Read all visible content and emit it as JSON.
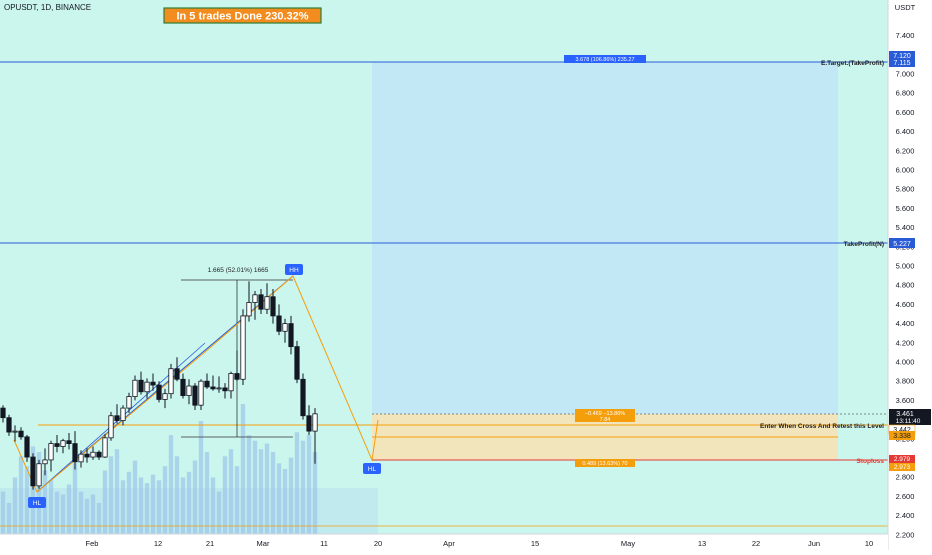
{
  "header": {
    "symbol": "OPUSDT, 1D, BINANCE",
    "banner": "In 5 trades Done 230.32%"
  },
  "price_axis": {
    "currency": "USDT",
    "ticks": [
      "7.400",
      "7.200",
      "7.000",
      "6.800",
      "6.600",
      "6.400",
      "6.200",
      "6.000",
      "5.800",
      "5.600",
      "5.400",
      "5.200",
      "5.000",
      "4.800",
      "4.600",
      "4.400",
      "4.200",
      "4.000",
      "3.800",
      "3.600",
      "3.400",
      "3.200",
      "3.000",
      "2.800",
      "2.600",
      "2.400",
      "2.200"
    ],
    "badges": {
      "target_top": "7.120",
      "target_bottom": "7.115",
      "takeprofit": "5.227",
      "current": "3.461",
      "countdown": "13:11:40",
      "entry": "3.442",
      "level": "3.338",
      "stoploss_top": "2.979",
      "stoploss_bottom": "2.973"
    }
  },
  "time_axis": {
    "ticks": [
      "Feb",
      "12",
      "21",
      "Mar",
      "11",
      "20",
      "Apr",
      "15",
      "May",
      "13",
      "22",
      "Jun",
      "10"
    ]
  },
  "annotations": {
    "etarget_label": "E.Target.(TakeProfit)",
    "takeprofit_label": "TakeProfit(N)",
    "enter_label": "Enter When Cross And Retest this Level",
    "stoploss_label": "Stoploss",
    "target_box_text": "3.678 (106.86%) 235.27",
    "entry_box_text": "−0.469 −13.86%",
    "entry_box_sub": "7.84",
    "stop_box_text": "0.489 (13.63%) 70",
    "measure_text": "1.665 (52.01%) 1665",
    "pivot_hh": "HH",
    "pivot_hl": "HL",
    "pivot_hl2": "HL"
  },
  "colors": {
    "teal_bg": "#cbf6ee",
    "profit_zone": "#c1e8f4",
    "entry_zone": "#f3e3b7",
    "blue_line": "#2a5bd7",
    "orange": "#f59e0b",
    "red": "#e53935",
    "candle": "#131722",
    "volume": "#8fb8e6",
    "banner_bg": "#f28c1e",
    "banner_border": "#2e7d32",
    "pivot_bg": "#2962ff"
  },
  "chart_data": {
    "type": "candlestick",
    "x_axis": "date (daily)",
    "y_axis": "price (USDT)",
    "ylim": [
      2.2,
      7.5
    ],
    "candles": [
      [
        3.52,
        3.55,
        3.37,
        3.42
      ],
      [
        3.42,
        3.45,
        3.23,
        3.27
      ],
      [
        3.27,
        3.34,
        3.17,
        3.28
      ],
      [
        3.28,
        3.32,
        3.19,
        3.22
      ],
      [
        3.22,
        3.24,
        2.96,
        3.01
      ],
      [
        3.01,
        3.05,
        2.67,
        2.71
      ],
      [
        2.71,
        2.98,
        2.68,
        2.94
      ],
      [
        2.94,
        3.1,
        2.82,
        2.98
      ],
      [
        2.98,
        3.18,
        2.86,
        3.15
      ],
      [
        3.15,
        3.24,
        3.06,
        3.12
      ],
      [
        3.12,
        3.2,
        3.05,
        3.18
      ],
      [
        3.18,
        3.26,
        3.09,
        3.15
      ],
      [
        3.15,
        3.28,
        2.88,
        2.96
      ],
      [
        2.96,
        3.08,
        2.9,
        3.04
      ],
      [
        3.04,
        3.1,
        2.95,
        3.01
      ],
      [
        3.01,
        3.12,
        2.98,
        3.06
      ],
      [
        3.06,
        3.08,
        2.98,
        3.01
      ],
      [
        3.01,
        3.25,
        3.0,
        3.21
      ],
      [
        3.21,
        3.48,
        3.18,
        3.44
      ],
      [
        3.44,
        3.56,
        3.36,
        3.39
      ],
      [
        3.39,
        3.55,
        3.34,
        3.52
      ],
      [
        3.52,
        3.68,
        3.47,
        3.64
      ],
      [
        3.64,
        3.86,
        3.6,
        3.81
      ],
      [
        3.81,
        3.9,
        3.66,
        3.69
      ],
      [
        3.69,
        3.83,
        3.62,
        3.79
      ],
      [
        3.79,
        3.88,
        3.7,
        3.76
      ],
      [
        3.76,
        3.8,
        3.58,
        3.61
      ],
      [
        3.61,
        3.72,
        3.52,
        3.67
      ],
      [
        3.67,
        3.98,
        3.62,
        3.93
      ],
      [
        3.93,
        4.05,
        3.8,
        3.82
      ],
      [
        3.82,
        3.88,
        3.62,
        3.65
      ],
      [
        3.65,
        3.82,
        3.56,
        3.75
      ],
      [
        3.75,
        3.78,
        3.5,
        3.55
      ],
      [
        3.55,
        3.82,
        3.5,
        3.8
      ],
      [
        3.8,
        3.88,
        3.72,
        3.74
      ],
      [
        3.74,
        3.86,
        3.7,
        3.72
      ],
      [
        3.72,
        3.85,
        3.68,
        3.73
      ],
      [
        3.73,
        3.78,
        3.62,
        3.7
      ],
      [
        3.7,
        3.9,
        3.62,
        3.88
      ],
      [
        3.88,
        4.12,
        3.8,
        3.82
      ],
      [
        3.82,
        4.55,
        3.76,
        4.48
      ],
      [
        4.48,
        4.84,
        4.42,
        4.62
      ],
      [
        4.62,
        4.74,
        4.44,
        4.7
      ],
      [
        4.7,
        4.76,
        4.5,
        4.55
      ],
      [
        4.55,
        4.82,
        4.5,
        4.68
      ],
      [
        4.68,
        4.76,
        4.4,
        4.48
      ],
      [
        4.48,
        4.6,
        4.28,
        4.32
      ],
      [
        4.32,
        4.45,
        4.2,
        4.4
      ],
      [
        4.4,
        4.48,
        4.08,
        4.16
      ],
      [
        4.16,
        4.22,
        3.78,
        3.82
      ],
      [
        3.82,
        3.88,
        3.4,
        3.44
      ],
      [
        3.44,
        3.55,
        3.24,
        3.28
      ],
      [
        3.28,
        3.52,
        2.94,
        3.46
      ]
    ],
    "volume": [
      30,
      22,
      40,
      55,
      48,
      62,
      58,
      45,
      38,
      30,
      28,
      35,
      50,
      30,
      25,
      28,
      22,
      45,
      55,
      60,
      38,
      44,
      52,
      40,
      36,
      42,
      38,
      48,
      70,
      55,
      40,
      44,
      52,
      80,
      58,
      40,
      30,
      55,
      60,
      48,
      92,
      70,
      66,
      60,
      64,
      58,
      50,
      46,
      54,
      72,
      66,
      70,
      58
    ],
    "levels": {
      "e_target": 7.118,
      "takeprofit": 5.227,
      "entry": 3.442,
      "retest": 3.338,
      "stoploss": 2.976,
      "current": 3.461
    }
  }
}
